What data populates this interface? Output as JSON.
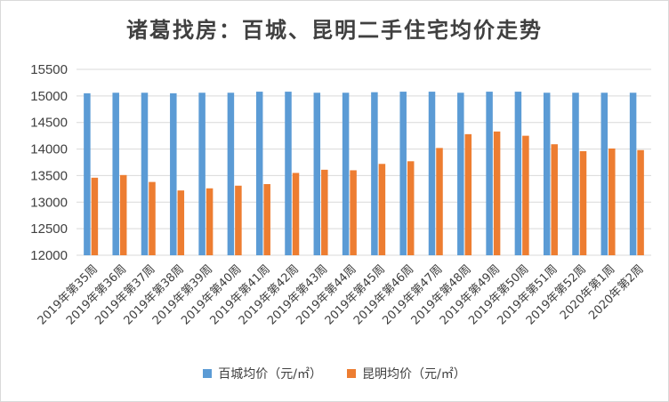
{
  "title": "诸葛找房：百城、昆明二手住宅均价走势",
  "chart_data": {
    "type": "bar",
    "title": "诸葛找房：百城、昆明二手住宅均价走势",
    "categories": [
      "2019年第35周",
      "2019年第36周",
      "2019年第37周",
      "2019年第38周",
      "2019年第39周",
      "2019年第40周",
      "2019年第41周",
      "2019年第42周",
      "2019年第43周",
      "2019年第44周",
      "2019年第45周",
      "2019年第46周",
      "2019年第47周",
      "2019年第48周",
      "2019年第49周",
      "2019年第50周",
      "2019年第51周",
      "2019年第52周",
      "2020年第1周",
      "2020年第2周"
    ],
    "series": [
      {
        "name": "百城均价（元/㎡）",
        "color": "#5b9bd5",
        "values": [
          15050,
          15060,
          15060,
          15050,
          15060,
          15060,
          15080,
          15080,
          15060,
          15060,
          15070,
          15080,
          15080,
          15060,
          15080,
          15080,
          15060,
          15060,
          15060,
          15060
        ]
      },
      {
        "name": "昆明均价（元/㎡）",
        "color": "#ed7d31",
        "values": [
          13460,
          13510,
          13380,
          13220,
          13260,
          13310,
          13340,
          13550,
          13610,
          13600,
          13720,
          13770,
          14020,
          14280,
          14330,
          14250,
          14090,
          13960,
          14010,
          13980
        ]
      }
    ],
    "ylim": [
      12000,
      15500
    ],
    "yticks": [
      12000,
      12500,
      13000,
      13500,
      14000,
      14500,
      15000,
      15500
    ],
    "xlabel": "",
    "ylabel": "",
    "grid": true,
    "legend_position": "bottom"
  }
}
